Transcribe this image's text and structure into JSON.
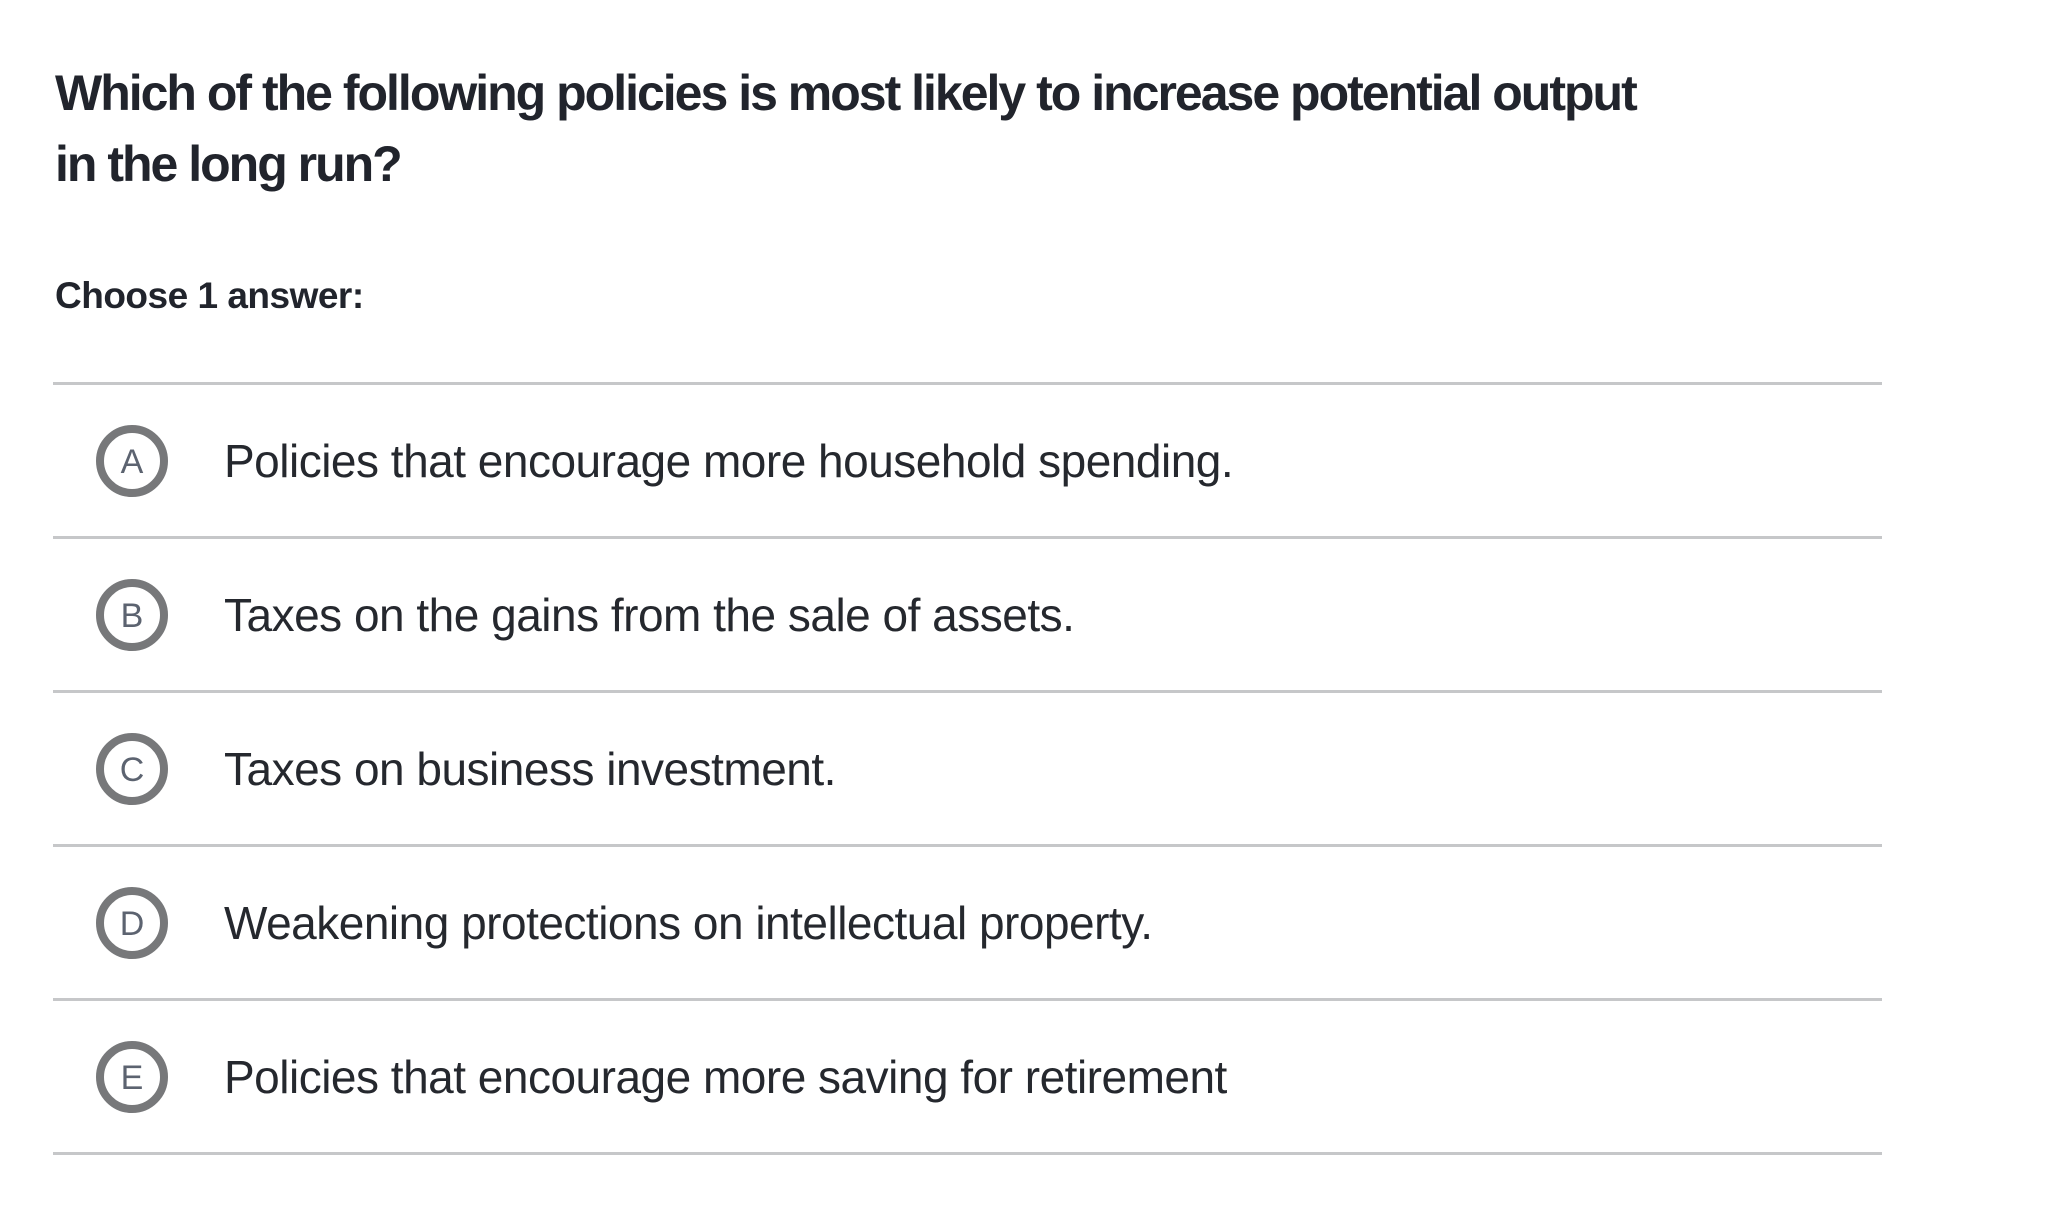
{
  "question": {
    "title": "Which of the following policies is most likely to increase potential output in the long run?",
    "title_line1": "Which of the following policies is most likely to increase potential output",
    "title_line2": "in the long run?",
    "prompt": "Choose 1 answer:"
  },
  "choices": [
    {
      "letter": "A",
      "text": "Policies that encourage more household spending."
    },
    {
      "letter": "B",
      "text": "Taxes on the gains from the sale of assets."
    },
    {
      "letter": "C",
      "text": "Taxes on business investment."
    },
    {
      "letter": "D",
      "text": "Weakening protections on intellectual property."
    },
    {
      "letter": "E",
      "text": "Policies that encourage more saving for retirement"
    }
  ],
  "colors": {
    "text": "#21242c",
    "choice_text": "#25282e",
    "radio_border": "#77787a",
    "radio_letter": "#5c6370",
    "divider": "#c6c7c9",
    "background": "#ffffff"
  }
}
